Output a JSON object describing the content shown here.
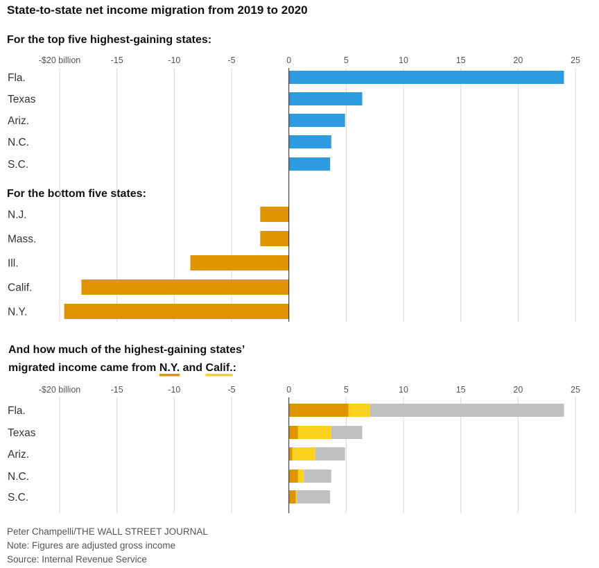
{
  "title": "State-to-state net income migration from 2019 to 2020",
  "sections": {
    "top": "For the top five highest-gaining states:",
    "bottom": "For the bottom five states:",
    "breakdown_line1": "And how much of the highest-gaining states’",
    "breakdown_line2_prefix": "migrated income came from ",
    "breakdown_ny": "N.Y.",
    "breakdown_and": " and ",
    "breakdown_calif": "Calif.",
    "breakdown_colon": ":"
  },
  "footer": {
    "credit": "Peter Champelli/THE WALL STREET JOURNAL",
    "note": "Note: Figures are adjusted gross income",
    "source": "Source: Internal Revenue Service"
  },
  "colors": {
    "gain": "#2d9be0",
    "loss": "#e09400",
    "from_ny": "#e09400",
    "from_calif": "#fcd21d",
    "other": "#c0c0c0",
    "grid": "#d8d8d8",
    "axis": "#222222"
  },
  "chart_data": [
    {
      "type": "bar",
      "orientation": "horizontal",
      "title": "State-to-state net income migration from 2019 to 2020",
      "xlim": [
        -20,
        25
      ],
      "x_ticks": [
        -20,
        -15,
        -10,
        -5,
        0,
        5,
        10,
        15,
        20,
        25
      ],
      "x_tick_labels": [
        "-$20 billion",
        "-15",
        "-10",
        "-5",
        "0",
        "5",
        "10",
        "15",
        "20",
        "25"
      ],
      "grid": true,
      "groups": [
        {
          "label": "For the top five highest-gaining states:",
          "categories": [
            "Fla.",
            "Texas",
            "Ariz.",
            "N.C.",
            "S.C."
          ],
          "values": [
            24.0,
            6.4,
            4.9,
            3.7,
            3.6
          ]
        },
        {
          "label": "For the bottom five states:",
          "categories": [
            "N.J.",
            "Mass.",
            "Ill.",
            "Calif.",
            "N.Y."
          ],
          "values": [
            -2.5,
            -2.5,
            -8.6,
            -18.1,
            -19.6
          ]
        }
      ]
    },
    {
      "type": "bar",
      "orientation": "horizontal",
      "stacked": true,
      "xlim": [
        -20,
        25
      ],
      "x_ticks": [
        -20,
        -15,
        -10,
        -5,
        0,
        5,
        10,
        15,
        20,
        25
      ],
      "x_tick_labels": [
        "-$20 billion",
        "-15",
        "-10",
        "-5",
        "0",
        "5",
        "10",
        "15",
        "20",
        "25"
      ],
      "grid": true,
      "categories": [
        "Fla.",
        "Texas",
        "Ariz.",
        "N.C.",
        "S.C."
      ],
      "series": [
        {
          "name": "N.Y.",
          "values": [
            5.2,
            0.8,
            0.3,
            0.8,
            0.6
          ]
        },
        {
          "name": "Calif.",
          "values": [
            1.9,
            2.9,
            2.0,
            0.5,
            0.1
          ]
        },
        {
          "values": [
            16.9,
            2.7,
            2.6,
            2.4,
            2.9
          ]
        }
      ]
    }
  ]
}
